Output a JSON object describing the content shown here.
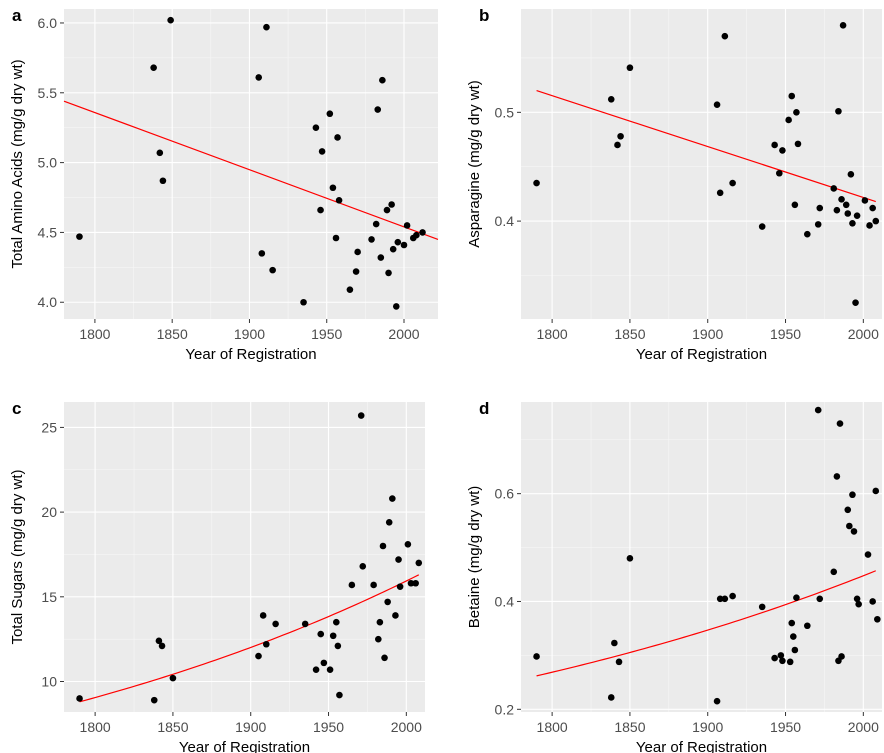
{
  "chart_data": [
    {
      "panel_label": "a",
      "type": "scatter",
      "xlabel": "Year of Registration",
      "ylabel": "Total Amino Acids (mg/g dry wt)",
      "xlim": [
        1780,
        2022
      ],
      "ylim": [
        3.88,
        6.1
      ],
      "xticks": [
        1800,
        1850,
        1900,
        1950,
        2000
      ],
      "yticks": [
        4.0,
        4.5,
        5.0,
        5.5,
        6.0
      ],
      "ytick_labels": [
        "4.0",
        "4.5",
        "5.0",
        "5.5",
        "6.0"
      ],
      "points": [
        [
          1790,
          4.47
        ],
        [
          1838,
          5.68
        ],
        [
          1842,
          5.07
        ],
        [
          1844,
          4.87
        ],
        [
          1849,
          6.02
        ],
        [
          1906,
          5.61
        ],
        [
          1908,
          4.35
        ],
        [
          1911,
          5.97
        ],
        [
          1915,
          4.23
        ],
        [
          1935,
          4.0
        ],
        [
          1943,
          5.25
        ],
        [
          1946,
          4.66
        ],
        [
          1947,
          5.08
        ],
        [
          1952,
          5.35
        ],
        [
          1954,
          4.82
        ],
        [
          1956,
          4.46
        ],
        [
          1957,
          5.18
        ],
        [
          1958,
          4.73
        ],
        [
          1965,
          4.09
        ],
        [
          1969,
          4.22
        ],
        [
          1970,
          4.36
        ],
        [
          1979,
          4.45
        ],
        [
          1982,
          4.56
        ],
        [
          1983,
          5.38
        ],
        [
          1985,
          4.32
        ],
        [
          1986,
          5.59
        ],
        [
          1989,
          4.66
        ],
        [
          1990,
          4.21
        ],
        [
          1992,
          4.7
        ],
        [
          1993,
          4.38
        ],
        [
          1995,
          3.97
        ],
        [
          1996,
          4.43
        ],
        [
          2000,
          4.41
        ],
        [
          2002,
          4.55
        ],
        [
          2006,
          4.46
        ],
        [
          2008,
          4.48
        ],
        [
          2012,
          4.5
        ]
      ],
      "fit_line": [
        [
          1780,
          5.44
        ],
        [
          2022,
          4.45
        ]
      ]
    },
    {
      "panel_label": "b",
      "type": "scatter",
      "xlabel": "Year of Registration",
      "ylabel": "Asparagine (mg/g dry wt)",
      "xlim": [
        1780,
        2012
      ],
      "ylim": [
        0.31,
        0.595
      ],
      "xticks": [
        1800,
        1850,
        1900,
        1950,
        2000
      ],
      "yticks": [
        0.4,
        0.5
      ],
      "ytick_labels": [
        "0.4",
        "0.5"
      ],
      "points": [
        [
          1790,
          0.435
        ],
        [
          1838,
          0.512
        ],
        [
          1842,
          0.47
        ],
        [
          1844,
          0.478
        ],
        [
          1850,
          0.541
        ],
        [
          1906,
          0.507
        ],
        [
          1908,
          0.426
        ],
        [
          1911,
          0.57
        ],
        [
          1916,
          0.435
        ],
        [
          1935,
          0.395
        ],
        [
          1943,
          0.47
        ],
        [
          1946,
          0.444
        ],
        [
          1948,
          0.465
        ],
        [
          1952,
          0.493
        ],
        [
          1954,
          0.515
        ],
        [
          1956,
          0.415
        ],
        [
          1957,
          0.5
        ],
        [
          1958,
          0.471
        ],
        [
          1964,
          0.388
        ],
        [
          1971,
          0.397
        ],
        [
          1972,
          0.412
        ],
        [
          1981,
          0.43
        ],
        [
          1983,
          0.41
        ],
        [
          1984,
          0.501
        ],
        [
          1986,
          0.42
        ],
        [
          1987,
          0.58
        ],
        [
          1989,
          0.415
        ],
        [
          1990,
          0.407
        ],
        [
          1992,
          0.443
        ],
        [
          1993,
          0.398
        ],
        [
          1995,
          0.325
        ],
        [
          1996,
          0.405
        ],
        [
          2001,
          0.419
        ],
        [
          2004,
          0.396
        ],
        [
          2006,
          0.412
        ],
        [
          2008,
          0.4
        ]
      ],
      "fit_line": [
        [
          1790,
          0.52
        ],
        [
          2008,
          0.418
        ]
      ]
    },
    {
      "panel_label": "c",
      "type": "scatter",
      "xlabel": "Year of Registration",
      "ylabel": "Total Sugars (mg/g dry wt)",
      "xlim": [
        1780,
        2012
      ],
      "ylim": [
        8.2,
        26.5
      ],
      "xticks": [
        1800,
        1850,
        1900,
        1950,
        2000
      ],
      "yticks": [
        10,
        15,
        20,
        25
      ],
      "ytick_labels": [
        "10",
        "15",
        "20",
        "25"
      ],
      "points": [
        [
          1790,
          9.0
        ],
        [
          1838,
          8.9
        ],
        [
          1841,
          12.4
        ],
        [
          1843,
          12.1
        ],
        [
          1850,
          10.2
        ],
        [
          1905,
          11.5
        ],
        [
          1908,
          13.9
        ],
        [
          1910,
          12.2
        ],
        [
          1916,
          13.4
        ],
        [
          1935,
          13.4
        ],
        [
          1942,
          10.7
        ],
        [
          1945,
          12.8
        ],
        [
          1947,
          11.1
        ],
        [
          1951,
          10.7
        ],
        [
          1953,
          12.7
        ],
        [
          1955,
          13.5
        ],
        [
          1956,
          12.1
        ],
        [
          1957,
          9.2
        ],
        [
          1965,
          15.7
        ],
        [
          1971,
          25.7
        ],
        [
          1972,
          16.8
        ],
        [
          1979,
          15.7
        ],
        [
          1982,
          12.5
        ],
        [
          1983,
          13.5
        ],
        [
          1985,
          18.0
        ],
        [
          1986,
          11.4
        ],
        [
          1988,
          14.7
        ],
        [
          1989,
          19.4
        ],
        [
          1991,
          20.8
        ],
        [
          1993,
          13.9
        ],
        [
          1995,
          17.2
        ],
        [
          1996,
          15.6
        ],
        [
          2001,
          18.1
        ],
        [
          2003,
          15.8
        ],
        [
          2006,
          15.8
        ],
        [
          2008,
          17.0
        ]
      ],
      "fit_line_type": "exponential",
      "fit_line": [
        [
          1790,
          8.8
        ],
        [
          2008,
          16.3
        ]
      ]
    },
    {
      "panel_label": "d",
      "type": "scatter",
      "xlabel": "Year of Registration",
      "ylabel": "Betaine (mg/g dry wt)",
      "xlim": [
        1780,
        2012
      ],
      "ylim": [
        0.195,
        0.77
      ],
      "xticks": [
        1800,
        1850,
        1900,
        1950,
        2000
      ],
      "yticks": [
        0.2,
        0.4,
        0.6
      ],
      "ytick_labels": [
        "0.2",
        "0.4",
        "0.6"
      ],
      "points": [
        [
          1790,
          0.298
        ],
        [
          1838,
          0.222
        ],
        [
          1840,
          0.323
        ],
        [
          1843,
          0.288
        ],
        [
          1850,
          0.48
        ],
        [
          1906,
          0.215
        ],
        [
          1908,
          0.405
        ],
        [
          1911,
          0.405
        ],
        [
          1916,
          0.41
        ],
        [
          1935,
          0.39
        ],
        [
          1943,
          0.295
        ],
        [
          1947,
          0.3
        ],
        [
          1948,
          0.29
        ],
        [
          1953,
          0.288
        ],
        [
          1954,
          0.36
        ],
        [
          1955,
          0.335
        ],
        [
          1956,
          0.31
        ],
        [
          1957,
          0.407
        ],
        [
          1964,
          0.355
        ],
        [
          1971,
          0.755
        ],
        [
          1972,
          0.405
        ],
        [
          1981,
          0.455
        ],
        [
          1983,
          0.632
        ],
        [
          1984,
          0.29
        ],
        [
          1985,
          0.73
        ],
        [
          1986,
          0.298
        ],
        [
          1990,
          0.57
        ],
        [
          1991,
          0.54
        ],
        [
          1993,
          0.598
        ],
        [
          1994,
          0.53
        ],
        [
          1996,
          0.405
        ],
        [
          1997,
          0.395
        ],
        [
          2003,
          0.487
        ],
        [
          2006,
          0.4
        ],
        [
          2008,
          0.605
        ],
        [
          2009,
          0.367
        ]
      ],
      "fit_line_type": "exponential",
      "fit_line": [
        [
          1790,
          0.262
        ],
        [
          2008,
          0.457
        ]
      ]
    }
  ],
  "colors": {
    "panel_bg": "#ebebeb",
    "grid_major": "#ffffff",
    "points": "#000000",
    "fit_line": "#ff0000",
    "tick_text": "#4d4d4d"
  }
}
